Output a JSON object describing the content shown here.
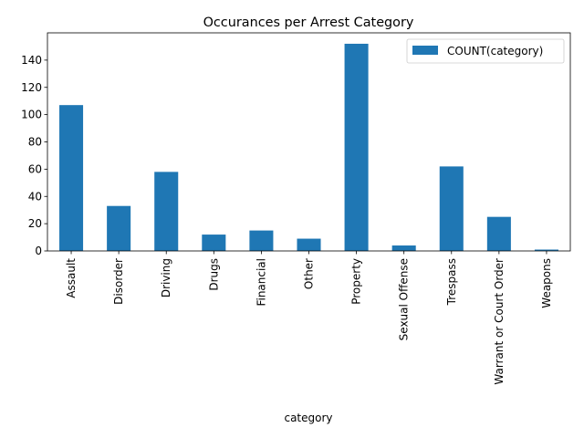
{
  "chart_data": {
    "type": "bar",
    "title": "Occurances per Arrest Category",
    "xlabel": "category",
    "ylabel": "",
    "categories": [
      "Assault",
      "Disorder",
      "Driving",
      "Drugs",
      "Financial",
      "Other",
      "Property",
      "Sexual Offense",
      "Trespass",
      "Warrant or Court Order",
      "Weapons"
    ],
    "series": [
      {
        "name": "COUNT(category)",
        "values": [
          107,
          33,
          58,
          12,
          15,
          9,
          152,
          4,
          62,
          25,
          1
        ],
        "color": "#1f77b4"
      }
    ],
    "ylim": [
      0,
      160
    ],
    "yticks": [
      0,
      20,
      40,
      60,
      80,
      100,
      120,
      140
    ],
    "grid": false,
    "legend_position": "top-right"
  }
}
